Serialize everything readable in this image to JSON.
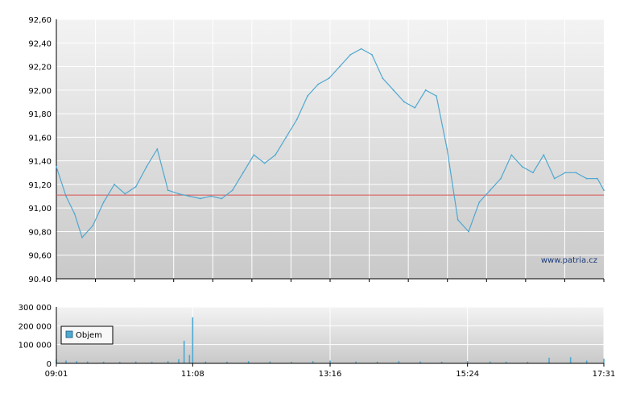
{
  "chart_data": [
    {
      "type": "line",
      "title": "",
      "xlabel": "",
      "ylabel": "",
      "ylim": [
        90.4,
        92.6
      ],
      "y_ticks": [
        "92,60",
        "92,40",
        "92,20",
        "92,00",
        "91,80",
        "91,60",
        "91,40",
        "91,20",
        "91,00",
        "90,80",
        "90,60",
        "90.40"
      ],
      "y_tick_values": [
        92.6,
        92.4,
        92.2,
        92.0,
        91.8,
        91.6,
        91.4,
        91.2,
        91.0,
        90.8,
        90.6,
        90.4
      ],
      "xlim": [
        "09:01",
        "17:31"
      ],
      "reference_line": 91.11,
      "reference_color": "#d9534f",
      "line_color": "#4fa8d0",
      "grid": true,
      "watermark": "www.patria.cz",
      "series": [
        {
          "x": [
            "09:01",
            "09:10",
            "09:18",
            "09:25",
            "09:35",
            "09:45",
            "09:55",
            "10:05",
            "10:15",
            "10:25",
            "10:35",
            "10:45",
            "10:55",
            "11:05",
            "11:15",
            "11:25",
            "11:35",
            "11:45",
            "11:55",
            "12:05",
            "12:15",
            "12:25",
            "12:35",
            "12:45",
            "12:55",
            "13:05",
            "13:15",
            "13:25",
            "13:35",
            "13:45",
            "13:55",
            "14:05",
            "14:15",
            "14:25",
            "14:35",
            "14:45",
            "14:55",
            "15:05",
            "15:15",
            "15:25",
            "15:35",
            "15:45",
            "15:55",
            "16:05",
            "16:15",
            "16:25",
            "16:35",
            "16:45",
            "16:55",
            "17:05",
            "17:15",
            "17:25",
            "17:31"
          ],
          "values": [
            91.35,
            91.1,
            90.95,
            90.75,
            90.85,
            91.05,
            91.2,
            91.12,
            91.18,
            91.35,
            91.5,
            91.15,
            91.12,
            91.1,
            91.08,
            91.1,
            91.08,
            91.15,
            91.3,
            91.45,
            91.38,
            91.45,
            91.6,
            91.75,
            91.95,
            92.05,
            92.1,
            92.2,
            92.3,
            92.35,
            92.3,
            92.1,
            92.0,
            91.9,
            91.85,
            92.0,
            91.95,
            91.5,
            90.9,
            90.8,
            91.05,
            91.15,
            91.25,
            91.45,
            91.35,
            91.3,
            91.45,
            91.25,
            91.3,
            91.3,
            91.25,
            91.25,
            91.15
          ]
        }
      ]
    },
    {
      "type": "bar",
      "title": "",
      "xlabel": "",
      "ylabel": "",
      "ylim": [
        0,
        300000
      ],
      "y_ticks": [
        "300 000",
        "200 000",
        "100 000",
        "0"
      ],
      "y_tick_values": [
        300000,
        200000,
        100000,
        0
      ],
      "x_ticks": [
        "09:01",
        "11:08",
        "13:16",
        "15:24",
        "17:31"
      ],
      "bar_color": "#4fa8d0",
      "grid": true,
      "series": [
        {
          "name": "Objem",
          "x": [
            "09:01",
            "09:10",
            "09:20",
            "09:30",
            "09:45",
            "10:00",
            "10:15",
            "10:30",
            "10:45",
            "10:55",
            "11:00",
            "11:05",
            "11:08",
            "11:20",
            "11:40",
            "12:00",
            "12:20",
            "12:40",
            "13:00",
            "13:16",
            "13:40",
            "14:00",
            "14:20",
            "14:40",
            "15:00",
            "15:24",
            "15:45",
            "16:00",
            "16:20",
            "16:40",
            "17:00",
            "17:15",
            "17:31"
          ],
          "values": [
            20000,
            15000,
            12000,
            10000,
            9000,
            8000,
            10000,
            8000,
            12000,
            22000,
            120000,
            45000,
            245000,
            10000,
            9000,
            12000,
            10000,
            8000,
            12000,
            15000,
            10000,
            9000,
            12000,
            10000,
            9000,
            12000,
            10000,
            9000,
            8000,
            30000,
            33000,
            15000,
            25000
          ]
        }
      ]
    }
  ]
}
